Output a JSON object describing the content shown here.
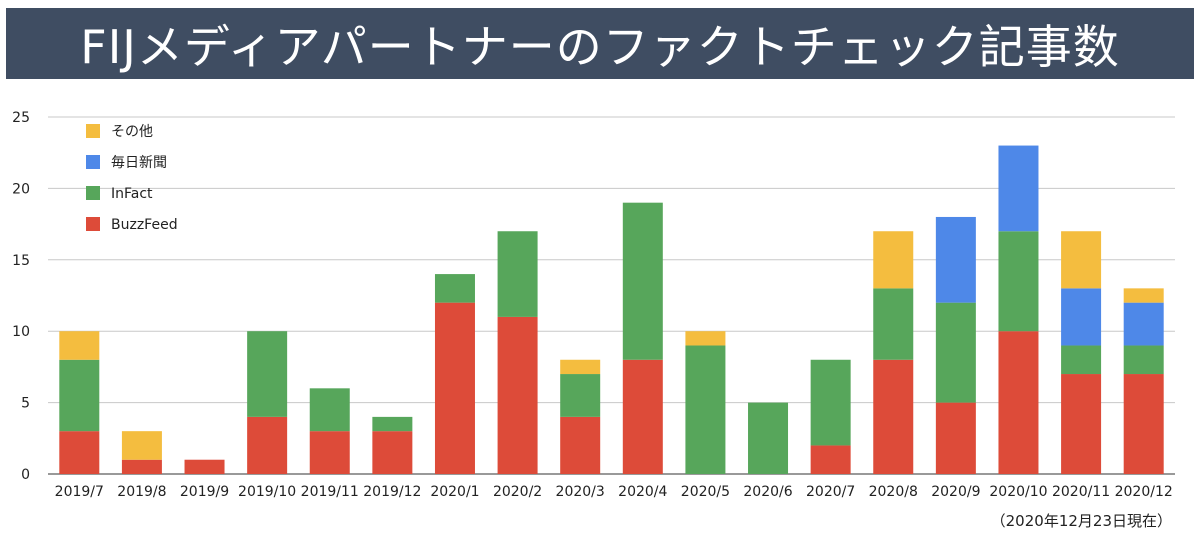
{
  "title": "FIJメディアパートナーのファクトチェック記事数",
  "footnote": "（2020年12月23日現在）",
  "chart_data": {
    "type": "bar",
    "stacked": true,
    "categories": [
      "2019/7",
      "2019/8",
      "2019/9",
      "2019/10",
      "2019/11",
      "2019/12",
      "2020/1",
      "2020/2",
      "2020/3",
      "2020/4",
      "2020/5",
      "2020/6",
      "2020/7",
      "2020/8",
      "2020/9",
      "2020/10",
      "2020/11",
      "2020/12"
    ],
    "series": [
      {
        "name": "BuzzFeed",
        "color": "#dd4b39",
        "values": [
          3,
          1,
          1,
          4,
          3,
          3,
          12,
          11,
          4,
          8,
          0,
          0,
          2,
          8,
          5,
          10,
          7,
          7
        ]
      },
      {
        "name": "InFact",
        "color": "#57a65b",
        "values": [
          5,
          0,
          0,
          6,
          3,
          1,
          2,
          6,
          3,
          11,
          9,
          5,
          6,
          5,
          7,
          7,
          2,
          2
        ]
      },
      {
        "name": "毎日新聞",
        "color": "#4e88e8",
        "values": [
          0,
          0,
          0,
          0,
          0,
          0,
          0,
          0,
          0,
          0,
          0,
          0,
          0,
          0,
          6,
          6,
          4,
          3
        ]
      },
      {
        "name": "その他",
        "color": "#f4bd3f",
        "values": [
          2,
          2,
          0,
          0,
          0,
          0,
          0,
          0,
          1,
          0,
          1,
          0,
          0,
          4,
          0,
          0,
          4,
          1
        ]
      }
    ],
    "legend": [
      "その他",
      "毎日新聞",
      "InFact",
      "BuzzFeed"
    ],
    "yticks": [
      "0",
      "5",
      "10",
      "15",
      "20",
      "25"
    ],
    "ylim": [
      0,
      25
    ],
    "grid": true,
    "legend_position": "top-left"
  }
}
